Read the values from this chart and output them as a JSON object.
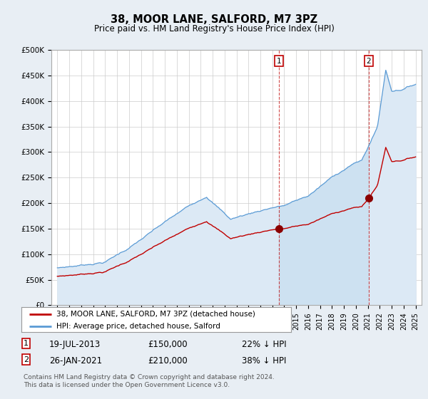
{
  "title": "38, MOOR LANE, SALFORD, M7 3PZ",
  "subtitle": "Price paid vs. HM Land Registry's House Price Index (HPI)",
  "footer": "Contains HM Land Registry data © Crown copyright and database right 2024.\nThis data is licensed under the Open Government Licence v3.0.",
  "legend_line1": "38, MOOR LANE, SALFORD, M7 3PZ (detached house)",
  "legend_line2": "HPI: Average price, detached house, Salford",
  "transaction1_label": "1",
  "transaction1_date": "19-JUL-2013",
  "transaction1_price": "£150,000",
  "transaction1_hpi": "22% ↓ HPI",
  "transaction1_year": 2013.54,
  "transaction1_value": 150000,
  "transaction2_label": "2",
  "transaction2_date": "26-JAN-2021",
  "transaction2_price": "£210,000",
  "transaction2_hpi": "38% ↓ HPI",
  "transaction2_year": 2021.07,
  "transaction2_value": 210000,
  "hpi_color": "#5b9bd5",
  "hpi_fill_color": "#dce9f5",
  "price_color": "#c00000",
  "marker_color": "#8b0000",
  "bg_color": "#e8eef4",
  "plot_bg": "#ffffff",
  "ylim": [
    0,
    500000
  ],
  "yticks": [
    0,
    50000,
    100000,
    150000,
    200000,
    250000,
    300000,
    350000,
    400000,
    450000,
    500000
  ],
  "xlim_start": 1994.5,
  "xlim_end": 2025.5
}
